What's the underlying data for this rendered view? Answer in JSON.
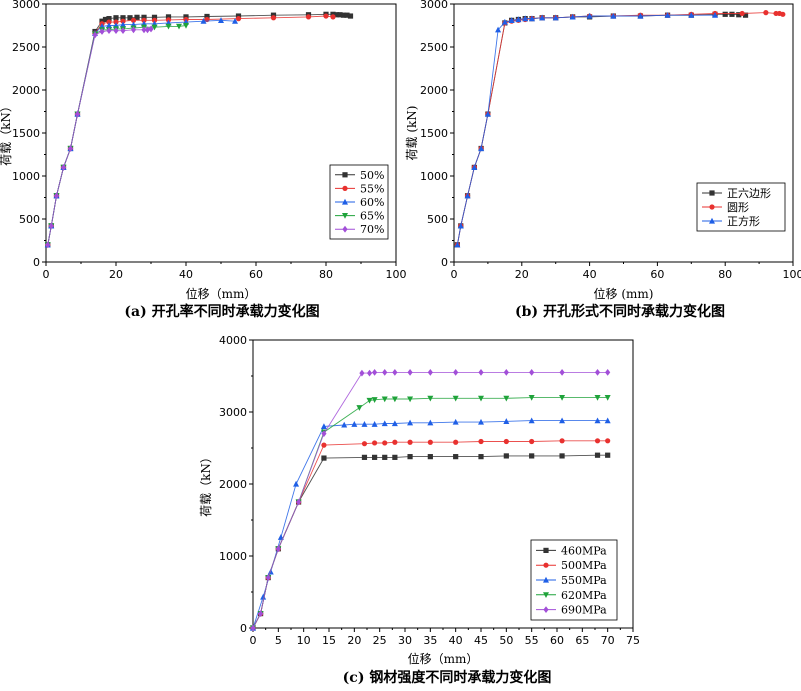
{
  "chart_data": [
    {
      "type": "line",
      "caption": "(a) 开孔率不同时承载力变化图",
      "xlabel": "位移（mm）",
      "ylabel": "荷载（kN）",
      "xlim": [
        0,
        100
      ],
      "ylim": [
        0,
        3000
      ],
      "xticks": [
        "0",
        "20",
        "40",
        "60",
        "80",
        "100"
      ],
      "yticks": [
        "0",
        "500",
        "1000",
        "1500",
        "2000",
        "2500",
        "3000"
      ],
      "legend_position": "right-middle",
      "series": [
        {
          "name": "50%",
          "color": "#333333",
          "marker": "square",
          "x": [
            0.5,
            1.5,
            3,
            5,
            7,
            9,
            14,
            16,
            17,
            18,
            20,
            22,
            24,
            26,
            28,
            31,
            35,
            40,
            46,
            55,
            65,
            75,
            80,
            82,
            83,
            84,
            85,
            86,
            87
          ],
          "y": [
            200,
            420,
            770,
            1100,
            1320,
            1720,
            2680,
            2800,
            2820,
            2830,
            2840,
            2840,
            2840,
            2845,
            2845,
            2845,
            2850,
            2850,
            2855,
            2860,
            2870,
            2875,
            2880,
            2880,
            2875,
            2875,
            2870,
            2870,
            2860
          ]
        },
        {
          "name": "55%",
          "color": "#e8312f",
          "marker": "circle",
          "x": [
            0.5,
            1.5,
            3,
            5,
            7,
            9,
            14,
            16,
            18,
            20,
            22,
            25,
            28,
            31,
            35,
            40,
            46,
            55,
            65,
            75,
            80,
            82
          ],
          "y": [
            200,
            420,
            770,
            1100,
            1320,
            1720,
            2660,
            2770,
            2790,
            2790,
            2800,
            2810,
            2810,
            2810,
            2815,
            2820,
            2820,
            2830,
            2840,
            2850,
            2860,
            2850
          ]
        },
        {
          "name": "60%",
          "color": "#1f5fe6",
          "marker": "triangle-up",
          "x": [
            0.5,
            1.5,
            3,
            5,
            7,
            9,
            14,
            16,
            18,
            20,
            22,
            25,
            28,
            31,
            35,
            40,
            45,
            50,
            54
          ],
          "y": [
            200,
            420,
            770,
            1100,
            1320,
            1720,
            2660,
            2740,
            2750,
            2750,
            2760,
            2760,
            2770,
            2770,
            2780,
            2790,
            2800,
            2810,
            2800
          ]
        },
        {
          "name": "65%",
          "color": "#1fa33a",
          "marker": "triangle-down",
          "x": [
            0.5,
            1.5,
            3,
            5,
            7,
            9,
            14,
            16,
            18,
            20,
            22,
            25,
            28,
            31,
            35,
            38,
            40
          ],
          "y": [
            200,
            420,
            770,
            1100,
            1320,
            1720,
            2650,
            2700,
            2700,
            2710,
            2710,
            2720,
            2730,
            2730,
            2740,
            2740,
            2750
          ]
        },
        {
          "name": "70%",
          "color": "#a24fd8",
          "marker": "diamond",
          "x": [
            0.5,
            1.5,
            3,
            5,
            7,
            9,
            14,
            16,
            18,
            20,
            22,
            25,
            28,
            29,
            30
          ],
          "y": [
            200,
            420,
            770,
            1100,
            1320,
            1720,
            2640,
            2680,
            2690,
            2690,
            2690,
            2700,
            2700,
            2700,
            2710
          ]
        }
      ]
    },
    {
      "type": "line",
      "caption": "(b) 开孔形式不同时承载力变化图",
      "xlabel": "位移 (mm)",
      "ylabel": "荷载 (kN)",
      "xlim": [
        0,
        100
      ],
      "ylim": [
        0,
        3000
      ],
      "xticks": [
        "0",
        "20",
        "40",
        "60",
        "80",
        "100"
      ],
      "yticks": [
        "0",
        "500",
        "1000",
        "1500",
        "2000",
        "2500",
        "3000"
      ],
      "legend_position": "right-lower",
      "series": [
        {
          "name": "正六边形",
          "color": "#333333",
          "marker": "square",
          "x": [
            1,
            2,
            4,
            6,
            8,
            10,
            15,
            17,
            19,
            21,
            23,
            26,
            30,
            35,
            40,
            47,
            55,
            63,
            70,
            77,
            80,
            82,
            84,
            86
          ],
          "y": [
            200,
            420,
            770,
            1100,
            1320,
            1720,
            2780,
            2810,
            2820,
            2830,
            2830,
            2840,
            2840,
            2850,
            2850,
            2860,
            2860,
            2870,
            2870,
            2880,
            2880,
            2880,
            2875,
            2870
          ]
        },
        {
          "name": "圆形",
          "color": "#e8312f",
          "marker": "circle",
          "x": [
            1,
            2,
            4,
            6,
            8,
            10,
            15,
            17,
            19,
            21,
            23,
            26,
            30,
            35,
            40,
            47,
            55,
            63,
            70,
            77,
            85,
            92,
            95,
            96,
            97
          ],
          "y": [
            200,
            420,
            770,
            1100,
            1320,
            1720,
            2780,
            2800,
            2810,
            2820,
            2830,
            2840,
            2840,
            2850,
            2860,
            2860,
            2870,
            2870,
            2880,
            2890,
            2890,
            2900,
            2890,
            2890,
            2880
          ]
        },
        {
          "name": "正方形",
          "color": "#1f5fe6",
          "marker": "triangle-up",
          "x": [
            1,
            2,
            4,
            6,
            8,
            10,
            13,
            15,
            17,
            19,
            21,
            23,
            26,
            30,
            35,
            40,
            47,
            55,
            63,
            70,
            77
          ],
          "y": [
            200,
            420,
            770,
            1100,
            1320,
            1720,
            2700,
            2790,
            2810,
            2820,
            2830,
            2830,
            2840,
            2840,
            2850,
            2860,
            2860,
            2860,
            2870,
            2870,
            2870
          ]
        }
      ]
    },
    {
      "type": "line",
      "caption": "(c) 钢材强度不同时承载力变化图",
      "xlabel": "位移（mm）",
      "ylabel": "荷载（kN）",
      "xlim": [
        0,
        75
      ],
      "ylim": [
        0,
        4000
      ],
      "xticks": [
        "0",
        "5",
        "10",
        "15",
        "20",
        "25",
        "30",
        "35",
        "40",
        "45",
        "50",
        "55",
        "60",
        "65",
        "70",
        "75"
      ],
      "yticks": [
        "0",
        "1000",
        "2000",
        "3000",
        "4000"
      ],
      "legend_position": "bottom-right",
      "series": [
        {
          "name": "460MPa",
          "color": "#333333",
          "marker": "square",
          "x": [
            0,
            1.5,
            3,
            5,
            9,
            14,
            22,
            24,
            26,
            28,
            31,
            35,
            40,
            45,
            50,
            55,
            61,
            68,
            70
          ],
          "y": [
            0,
            200,
            700,
            1100,
            1750,
            2360,
            2370,
            2370,
            2370,
            2370,
            2380,
            2380,
            2380,
            2380,
            2390,
            2390,
            2390,
            2400,
            2400
          ]
        },
        {
          "name": "500MPa",
          "color": "#e8312f",
          "marker": "circle",
          "x": [
            0,
            1.5,
            3,
            5,
            9,
            14,
            22,
            24,
            26,
            28,
            31,
            35,
            40,
            45,
            50,
            55,
            61,
            68,
            70
          ],
          "y": [
            0,
            200,
            700,
            1100,
            1750,
            2540,
            2560,
            2570,
            2570,
            2580,
            2580,
            2580,
            2580,
            2590,
            2590,
            2590,
            2600,
            2600,
            2600
          ]
        },
        {
          "name": "550MPa",
          "color": "#1f5fe6",
          "marker": "triangle-up",
          "x": [
            0,
            2,
            3.5,
            5.5,
            8.5,
            14,
            18,
            20,
            22,
            24,
            26,
            28,
            31,
            35,
            40,
            45,
            50,
            55,
            61,
            68,
            70
          ],
          "y": [
            0,
            430,
            780,
            1260,
            2000,
            2800,
            2820,
            2830,
            2830,
            2830,
            2840,
            2840,
            2850,
            2850,
            2860,
            2860,
            2870,
            2880,
            2880,
            2880,
            2880
          ]
        },
        {
          "name": "620MPa",
          "color": "#1fa33a",
          "marker": "triangle-down",
          "x": [
            0,
            1.5,
            3,
            5,
            9,
            14,
            21,
            23,
            24,
            26,
            28,
            31,
            35,
            40,
            45,
            50,
            55,
            61,
            68,
            70
          ],
          "y": [
            0,
            200,
            700,
            1100,
            1750,
            2720,
            3060,
            3160,
            3170,
            3180,
            3180,
            3180,
            3190,
            3190,
            3190,
            3190,
            3200,
            3200,
            3200,
            3200
          ]
        },
        {
          "name": "690MPa",
          "color": "#a24fd8",
          "marker": "diamond",
          "x": [
            0,
            1.5,
            3,
            5,
            9,
            14,
            21.5,
            23,
            24,
            26,
            28,
            31,
            35,
            40,
            45,
            50,
            55,
            61,
            68,
            70
          ],
          "y": [
            0,
            200,
            700,
            1100,
            1750,
            2700,
            3540,
            3540,
            3550,
            3550,
            3550,
            3550,
            3550,
            3550,
            3550,
            3550,
            3550,
            3550,
            3550,
            3550
          ]
        }
      ]
    }
  ]
}
